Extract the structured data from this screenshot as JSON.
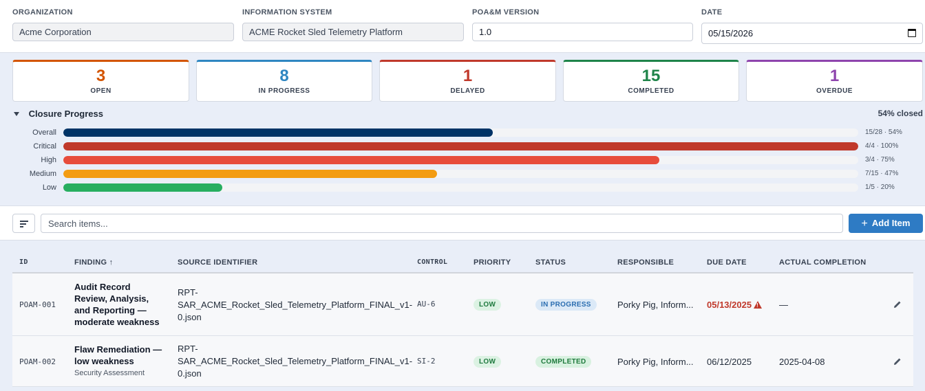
{
  "header": {
    "organization": {
      "label": "ORGANIZATION",
      "value": "Acme Corporation"
    },
    "system": {
      "label": "INFORMATION SYSTEM",
      "value": "ACME Rocket Sled Telemetry Platform"
    },
    "version": {
      "label": "POA&M VERSION",
      "value": "1.0"
    },
    "date": {
      "label": "DATE",
      "value": "05/15/2026"
    }
  },
  "stats": [
    {
      "value": "3",
      "label": "OPEN",
      "color": "#d35400"
    },
    {
      "value": "8",
      "label": "IN PROGRESS",
      "color": "#2e86c1"
    },
    {
      "value": "1",
      "label": "DELAYED",
      "color": "#c0392b"
    },
    {
      "value": "15",
      "label": "COMPLETED",
      "color": "#1e8449"
    },
    {
      "value": "1",
      "label": "OVERDUE",
      "color": "#8e44ad"
    }
  ],
  "progress": {
    "title": "Closure Progress",
    "summary": "54% closed",
    "rows": [
      {
        "label": "Overall",
        "fraction": 0.54,
        "meta": "15/28 · 54%",
        "color": "#003366"
      },
      {
        "label": "Critical",
        "fraction": 1.0,
        "meta": "4/4 · 100%",
        "color": "#c0392b"
      },
      {
        "label": "High",
        "fraction": 0.75,
        "meta": "3/4 · 75%",
        "color": "#e74c3c"
      },
      {
        "label": "Medium",
        "fraction": 0.47,
        "meta": "7/15 · 47%",
        "color": "#f39c12"
      },
      {
        "label": "Low",
        "fraction": 0.2,
        "meta": "1/5 · 20%",
        "color": "#27ae60"
      }
    ]
  },
  "toolbar": {
    "search_placeholder": "Search items...",
    "add_label": "Add Item",
    "add_plus": "+"
  },
  "table": {
    "headers": {
      "id": "ID",
      "finding": "FINDING ↑",
      "source": "SOURCE IDENTIFIER",
      "control": "CONTROL",
      "priority": "PRIORITY",
      "status": "STATUS",
      "responsible": "RESPONSIBLE",
      "due": "DUE DATE",
      "actual": "ACTUAL COMPLETION"
    },
    "rows": [
      {
        "id": "POAM-001",
        "finding": [
          "Audit Record",
          "Review, Analysis,",
          "and Reporting —",
          "moderate weakness"
        ],
        "finding_sub": "",
        "source": [
          "RPT-",
          "SAR_ACME_Rocket_Sled_Telemetry_Platform_FINAL_v1-",
          "0.json"
        ],
        "control": "AU-6",
        "priority": "LOW",
        "status": "IN PROGRESS",
        "responsible": "Porky Pig, Inform...",
        "due": "05/13/2025",
        "actual": "—"
      },
      {
        "id": "POAM-002",
        "finding": [
          "Flaw Remediation —",
          "low weakness"
        ],
        "finding_sub": "Security Assessment",
        "source": [
          "RPT-",
          "SAR_ACME_Rocket_Sled_Telemetry_Platform_FINAL_v1-",
          "0.json"
        ],
        "control": "SI-2",
        "priority": "LOW",
        "status": "COMPLETED",
        "responsible": "Porky Pig, Inform...",
        "due": "06/12/2025",
        "actual": "2025-04-08"
      }
    ]
  }
}
